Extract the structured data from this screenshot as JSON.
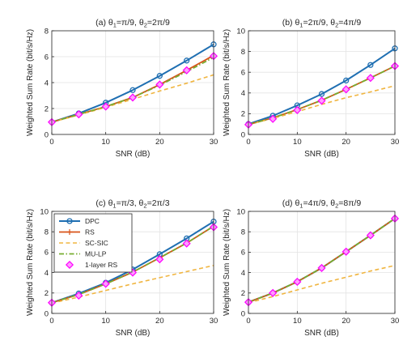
{
  "chart_data": [
    {
      "type": "line",
      "title": "(a) θ1=π/9, θ2=2π/9",
      "xlabel": "SNR (dB)",
      "ylabel": "Weighted Sum Rate (bit/s/Hz)",
      "xlim": [
        0,
        30
      ],
      "ylim": [
        0,
        8
      ],
      "xticks": [
        0,
        10,
        20,
        30
      ],
      "yticks": [
        0,
        2,
        4,
        6,
        8
      ],
      "x": [
        0,
        5,
        10,
        15,
        20,
        25,
        30
      ],
      "grid": true,
      "series": [
        {
          "name": "DPC",
          "values": [
            0.95,
            1.62,
            2.45,
            3.42,
            4.52,
            5.7,
            6.95
          ]
        },
        {
          "name": "RS",
          "values": [
            0.95,
            1.55,
            2.15,
            2.85,
            3.85,
            4.95,
            6.1
          ]
        },
        {
          "name": "SC-SIC",
          "values": [
            0.95,
            1.5,
            2.1,
            2.72,
            3.35,
            3.95,
            4.6
          ]
        },
        {
          "name": "MU-LP",
          "values": [
            0.95,
            1.55,
            2.15,
            2.85,
            3.8,
            4.85,
            5.95
          ]
        },
        {
          "name": "1-layer RS",
          "values": [
            0.95,
            1.55,
            2.15,
            2.85,
            3.85,
            4.95,
            6.05
          ]
        }
      ]
    },
    {
      "type": "line",
      "title": "(b) θ1=2π/9, θ2=4π/9",
      "xlabel": "SNR (dB)",
      "ylabel": "Weighted Sum Rate (bit/s/Hz)",
      "xlim": [
        0,
        30
      ],
      "ylim": [
        0,
        10
      ],
      "xticks": [
        0,
        10,
        20,
        30
      ],
      "yticks": [
        0,
        2,
        4,
        6,
        8,
        10
      ],
      "x": [
        0,
        5,
        10,
        15,
        20,
        25,
        30
      ],
      "grid": true,
      "series": [
        {
          "name": "DPC",
          "values": [
            1.0,
            1.8,
            2.8,
            3.9,
            5.2,
            6.7,
            8.3
          ]
        },
        {
          "name": "RS",
          "values": [
            0.95,
            1.6,
            2.4,
            3.3,
            4.35,
            5.45,
            6.6
          ]
        },
        {
          "name": "SC-SIC",
          "values": [
            0.95,
            1.55,
            2.2,
            2.9,
            3.55,
            4.1,
            4.7
          ]
        },
        {
          "name": "MU-LP",
          "values": [
            0.95,
            1.6,
            2.4,
            3.3,
            4.35,
            5.45,
            6.6
          ]
        },
        {
          "name": "1-layer RS",
          "values": [
            0.95,
            1.5,
            2.35,
            3.25,
            4.35,
            5.45,
            6.6
          ]
        }
      ]
    },
    {
      "type": "line",
      "title": "(c) θ1=π/3, θ2=2π/3",
      "xlabel": "SNR (dB)",
      "ylabel": "Weighted Sum Rate (bit/s/Hz)",
      "xlim": [
        0,
        30
      ],
      "ylim": [
        0,
        10
      ],
      "xticks": [
        0,
        10,
        20,
        30
      ],
      "yticks": [
        0,
        2,
        4,
        6,
        8,
        10
      ],
      "x": [
        0,
        5,
        10,
        15,
        20,
        25,
        30
      ],
      "grid": true,
      "legend": "top-left",
      "series": [
        {
          "name": "DPC",
          "values": [
            1.05,
            1.95,
            3.0,
            4.3,
            5.8,
            7.35,
            9.0
          ]
        },
        {
          "name": "RS",
          "values": [
            1.05,
            1.85,
            2.9,
            4.05,
            5.45,
            6.9,
            8.55
          ]
        },
        {
          "name": "SC-SIC",
          "values": [
            1.0,
            1.6,
            2.25,
            2.9,
            3.5,
            4.1,
            4.7
          ]
        },
        {
          "name": "MU-LP",
          "values": [
            1.05,
            1.85,
            2.9,
            4.05,
            5.45,
            6.9,
            8.55
          ]
        },
        {
          "name": "1-layer RS",
          "values": [
            1.05,
            1.75,
            2.9,
            4.0,
            5.3,
            6.85,
            8.45
          ]
        }
      ]
    },
    {
      "type": "line",
      "title": "(d) θ1=4π/9, θ2=8π/9",
      "xlabel": "SNR (dB)",
      "ylabel": "Weighted Sum Rate (bit/s/Hz)",
      "xlim": [
        0,
        30
      ],
      "ylim": [
        0,
        10
      ],
      "xticks": [
        0,
        10,
        20,
        30
      ],
      "yticks": [
        0,
        2,
        4,
        6,
        8,
        10
      ],
      "x": [
        0,
        5,
        10,
        15,
        20,
        25,
        30
      ],
      "grid": true,
      "series": [
        {
          "name": "DPC",
          "values": [
            1.1,
            2.0,
            3.1,
            4.45,
            6.05,
            7.65,
            9.3
          ]
        },
        {
          "name": "RS",
          "values": [
            1.1,
            2.0,
            3.1,
            4.45,
            6.05,
            7.65,
            9.3
          ]
        },
        {
          "name": "SC-SIC",
          "values": [
            1.05,
            1.65,
            2.3,
            2.95,
            3.55,
            4.15,
            4.7
          ]
        },
        {
          "name": "MU-LP",
          "values": [
            1.1,
            2.0,
            3.1,
            4.45,
            6.05,
            7.65,
            9.3
          ]
        },
        {
          "name": "1-layer RS",
          "values": [
            1.1,
            2.0,
            3.1,
            4.45,
            6.05,
            7.65,
            9.3
          ]
        }
      ]
    }
  ],
  "styles": {
    "DPC": {
      "color": "#1f6fb2"
    },
    "RS": {
      "color": "#d95319"
    },
    "SC-SIC": {
      "color": "#f0b540"
    },
    "MU-LP": {
      "color": "#77ac30"
    },
    "1-layer RS": {
      "color": "#ff00ff"
    }
  }
}
